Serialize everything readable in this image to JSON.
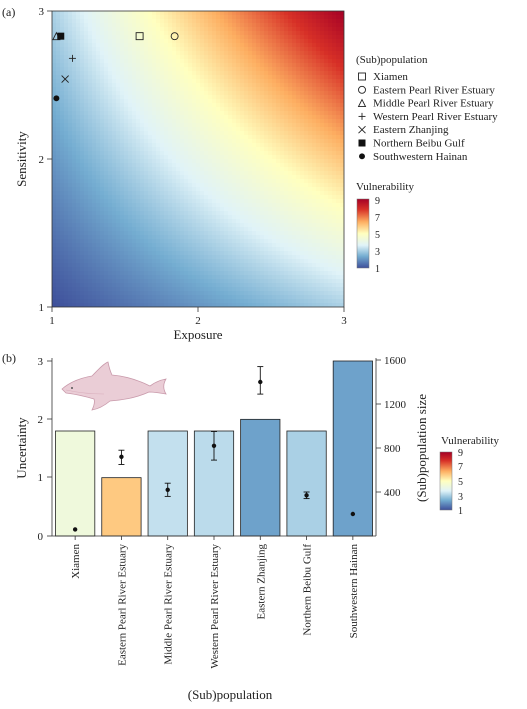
{
  "panel_a_label": "(a)",
  "panel_b_label": "(b)",
  "chart_data": [
    {
      "type": "heatmap",
      "xlabel": "Exposure",
      "ylabel": "Sensitivity",
      "xlim": [
        1,
        3
      ],
      "ylim": [
        1,
        3
      ],
      "x_ticks": [
        "1",
        "2",
        "3"
      ],
      "y_ticks": [
        "1",
        "2",
        "3"
      ],
      "surface": "vulnerability = exposure x sensitivity",
      "legend_title": "(Sub)population",
      "colorbar": {
        "title": "Vulnerability",
        "ticks": [
          "9",
          "7",
          "5",
          "3",
          "1"
        ],
        "range": [
          1,
          9
        ],
        "colors": [
          "#3e4f9a",
          "#74add1",
          "#e0f3f8",
          "#ffffbf",
          "#fdae61",
          "#d73027",
          "#a50026"
        ]
      },
      "series": [
        {
          "name": "Xiamen",
          "marker": "square",
          "x": 1.6,
          "y": 2.83
        },
        {
          "name": "Eastern Pearl River Estuary",
          "marker": "circle",
          "x": 1.84,
          "y": 2.83
        },
        {
          "name": "Middle Pearl River Estuary",
          "marker": "triangle",
          "x": 1.03,
          "y": 2.83
        },
        {
          "name": "Western Pearl River Estuary",
          "marker": "plus",
          "x": 1.14,
          "y": 2.68
        },
        {
          "name": "Eastern Zhanjing",
          "marker": "cross",
          "x": 1.09,
          "y": 2.54
        },
        {
          "name": "Northern Beibu Gulf",
          "marker": "filled-square",
          "x": 1.06,
          "y": 2.83
        },
        {
          "name": "Southwestern Hainan",
          "marker": "filled-circle",
          "x": 1.03,
          "y": 2.41
        }
      ]
    },
    {
      "type": "bar",
      "xlabel": "(Sub)population",
      "ylabel": "Uncertainty",
      "y2label": "(Sub)population size",
      "ylim": [
        0,
        3
      ],
      "y2lim": [
        0,
        1600
      ],
      "y_ticks": [
        "0",
        "1",
        "2",
        "3"
      ],
      "y2_ticks": [
        "400",
        "800",
        "1200",
        "1600"
      ],
      "categories": [
        "Xiamen",
        "Eastern Pearl River Estuary",
        "Middle Pearl River Estuary",
        "Western Pearl River Estuary",
        "Eastern Zhanjing",
        "Northern Beibu Gulf",
        "Southwestern Hainan"
      ],
      "uncertainty": [
        1.8,
        1.0,
        1.8,
        1.8,
        2.0,
        1.8,
        3.0
      ],
      "bar_vulnerability": [
        4.3,
        5.9,
        3.3,
        3.2,
        2.2,
        3.0,
        2.2
      ],
      "population_size": [
        60,
        720,
        420,
        820,
        1400,
        370,
        200
      ],
      "population_err_low": [
        null,
        650,
        360,
        690,
        1290,
        340,
        null
      ],
      "population_err_high": [
        null,
        780,
        480,
        950,
        1540,
        400,
        null
      ],
      "colorbar": {
        "title": "Vulnerability",
        "ticks": [
          "9",
          "7",
          "5",
          "3",
          "1"
        ],
        "range": [
          1,
          9
        ]
      },
      "illustration": "dolphin"
    }
  ]
}
